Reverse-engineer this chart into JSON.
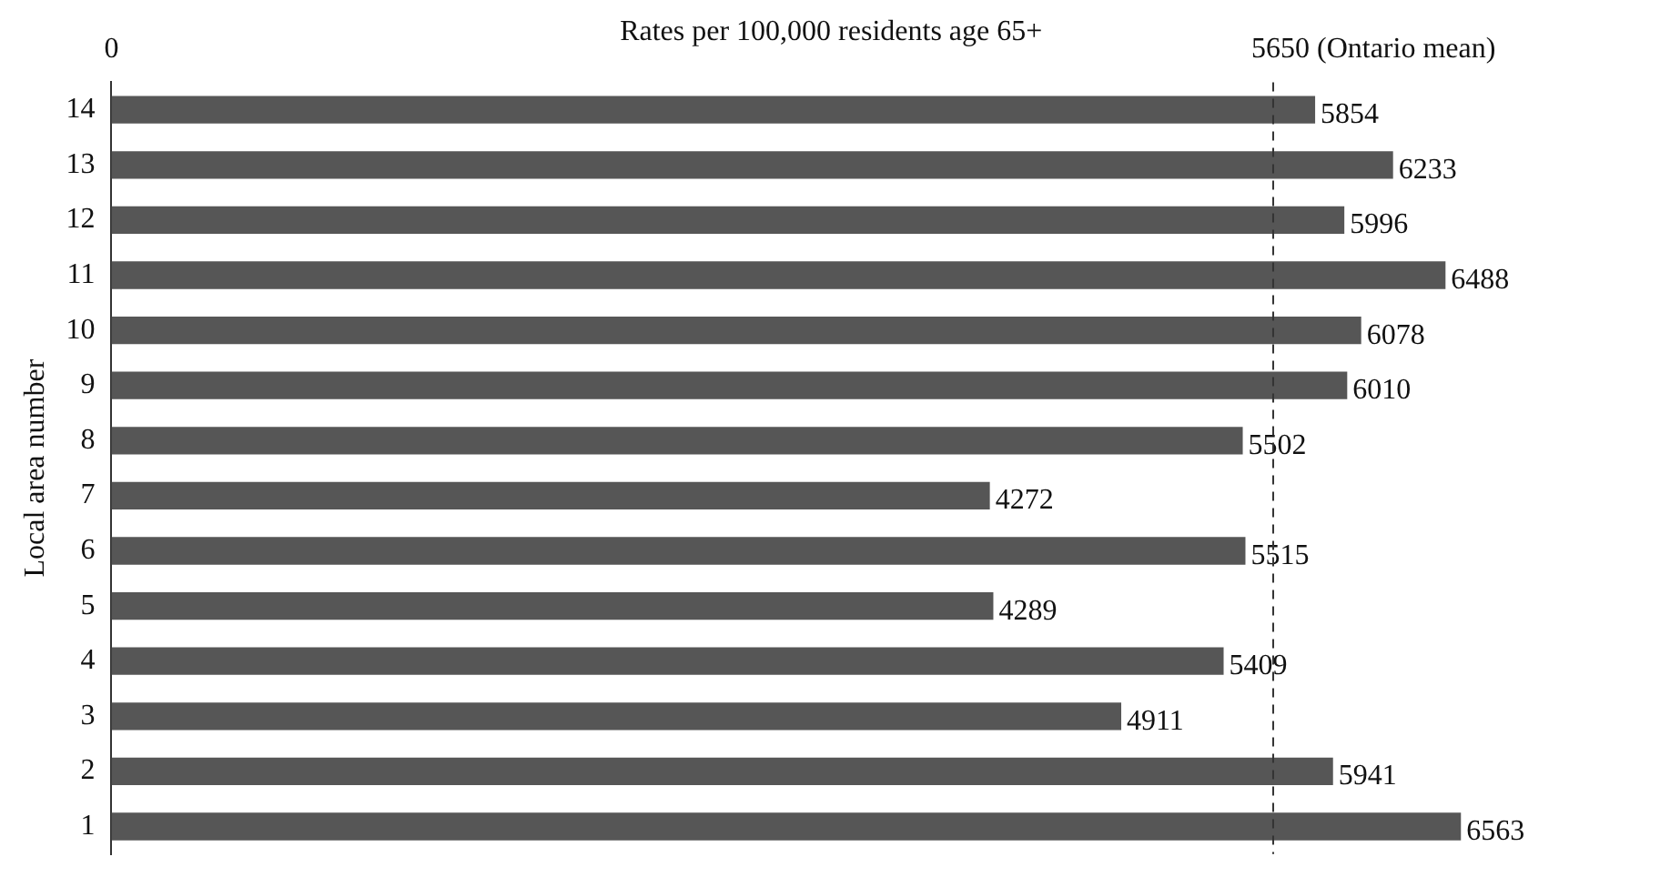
{
  "chart_data": {
    "type": "bar",
    "orientation": "horizontal",
    "xlabel": "Rates per 100,000 residents age 65+",
    "ylabel": "Local area number",
    "categories": [
      "14",
      "13",
      "12",
      "11",
      "10",
      "9",
      "8",
      "7",
      "6",
      "5",
      "4",
      "3",
      "2",
      "1"
    ],
    "values": [
      5854,
      6233,
      5996,
      6488,
      6078,
      6010,
      5502,
      4272,
      5515,
      4289,
      5409,
      4911,
      5941,
      6563
    ],
    "color": "#565656",
    "annotations": [
      "0"
    ],
    "data_labels": true,
    "grid": false,
    "legend": false,
    "ref_lines": [
      {
        "axis": "x",
        "value": 5650,
        "label": "5650 (Ontario mean)",
        "color": "#333333",
        "line_style": "dashed"
      }
    ]
  }
}
